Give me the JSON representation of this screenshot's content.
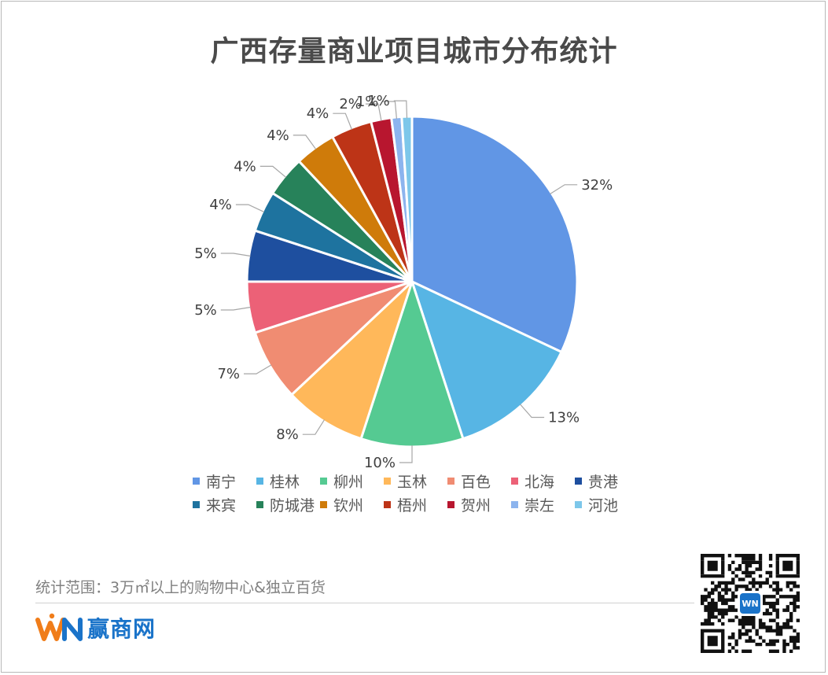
{
  "title": "广西存量商业项目城市分布统计",
  "scope_note": "统计范围：3万㎡以上的购物中心&独立百货",
  "brand": {
    "name": "赢商网",
    "logo_text": "WN"
  },
  "chart_data": {
    "type": "pie",
    "title": "广西存量商业项目城市分布统计",
    "legend_position": "bottom",
    "slices": [
      {
        "name": "南宁",
        "value": 32,
        "label": "32%",
        "color": "#6196e5"
      },
      {
        "name": "桂林",
        "value": 13,
        "label": "13%",
        "color": "#57b5e4"
      },
      {
        "name": "柳州",
        "value": 10,
        "label": "10%",
        "color": "#55ca92"
      },
      {
        "name": "玉林",
        "value": 8,
        "label": "8%",
        "color": "#ffb85a"
      },
      {
        "name": "百色",
        "value": 7,
        "label": "7%",
        "color": "#f08c72"
      },
      {
        "name": "北海",
        "value": 5,
        "label": "5%",
        "color": "#ec6177"
      },
      {
        "name": "贵港",
        "value": 5,
        "label": "5%",
        "color": "#1e4f9f"
      },
      {
        "name": "来宾",
        "value": 4,
        "label": "4%",
        "color": "#1e739f"
      },
      {
        "name": "防城港",
        "value": 4,
        "label": "4%",
        "color": "#27825a"
      },
      {
        "name": "钦州",
        "value": 4,
        "label": "4%",
        "color": "#cf7b0a"
      },
      {
        "name": "梧州",
        "value": 4,
        "label": "4%",
        "color": "#bd3417"
      },
      {
        "name": "贺州",
        "value": 2,
        "label": "2%",
        "color": "#b8162f"
      },
      {
        "name": "崇左",
        "value": 1,
        "label": "1%",
        "color": "#8cb4ee"
      },
      {
        "name": "河池",
        "value": 1,
        "label": "1%",
        "color": "#7dc7ea"
      }
    ]
  }
}
